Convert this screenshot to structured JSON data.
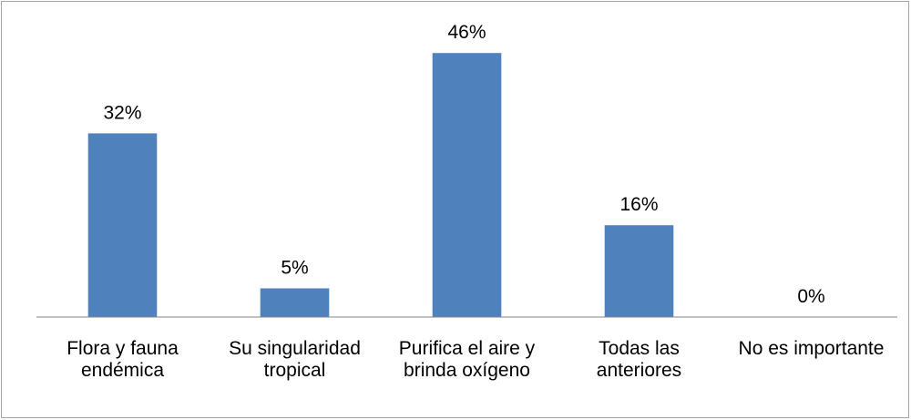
{
  "chart_data": {
    "type": "bar",
    "categories": [
      "Flora y fauna endémica",
      "Su singularidad tropical",
      "Purifica el aire y brinda oxígeno",
      "Todas las anteriores",
      "No es importante"
    ],
    "values": [
      32,
      5,
      46,
      16,
      0
    ],
    "value_labels": [
      "32%",
      "5%",
      "46%",
      "16%",
      "0%"
    ],
    "color": "#4f81bd",
    "ylim": [
      0,
      50
    ]
  }
}
